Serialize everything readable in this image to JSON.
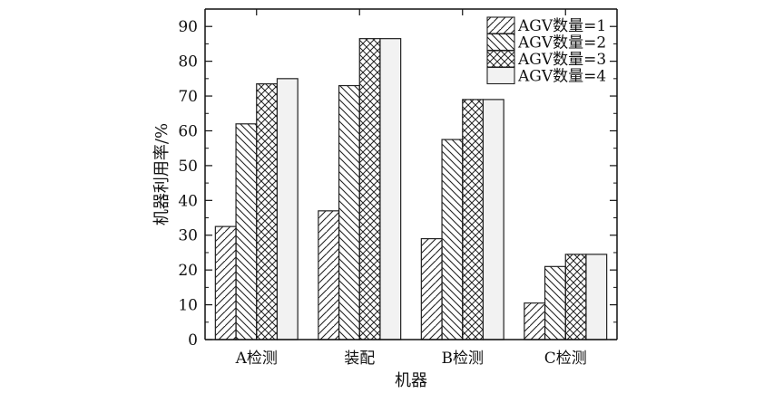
{
  "chart_data": {
    "type": "bar",
    "title": "",
    "xlabel": "机器",
    "ylabel": "机器利用率/%",
    "categories": [
      "A检测",
      "装配",
      "B检测",
      "C检测"
    ],
    "ylim": [
      0,
      95
    ],
    "yticks": [
      0,
      10,
      20,
      30,
      40,
      50,
      60,
      70,
      80,
      90
    ],
    "legend_position": "top-right",
    "grid": false,
    "series": [
      {
        "name": "AGV数量=1",
        "pattern": "forward-diagonal-hatch",
        "values": [
          32.5,
          37,
          29,
          10.5
        ]
      },
      {
        "name": "AGV数量=2",
        "pattern": "backward-diagonal-hatch",
        "values": [
          62,
          73,
          57.5,
          21
        ]
      },
      {
        "name": "AGV数量=3",
        "pattern": "cross-hatch",
        "values": [
          73.5,
          86.5,
          69,
          24.5
        ]
      },
      {
        "name": "AGV数量=4",
        "pattern": "light-gray-fill",
        "values": [
          75,
          86.5,
          69,
          24.5
        ]
      }
    ]
  },
  "colors": {
    "axis": "#111111",
    "bar_stroke": "#222222",
    "light_fill": "#f2f2f2"
  }
}
